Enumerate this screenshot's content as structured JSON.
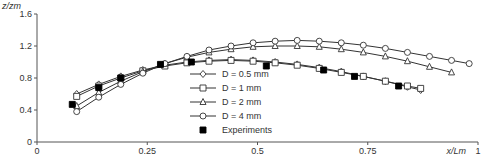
{
  "chart_data": {
    "type": "line",
    "x_label": "x/Lm",
    "y_label": "z/zm",
    "xlim": [
      0,
      1
    ],
    "xticks": [
      0,
      0.25,
      0.5,
      0.75,
      1
    ],
    "ylim": [
      0,
      1.6
    ],
    "yticks": [
      0,
      0.4,
      0.8,
      1.2,
      1.6
    ],
    "grid": false,
    "legend": "center",
    "series": [
      {
        "name": "D = 0.5 mm",
        "type": "line",
        "marker": "diamond",
        "color": "#333333",
        "x": [
          0.09,
          0.14,
          0.19,
          0.24,
          0.29,
          0.34,
          0.39,
          0.44,
          0.49,
          0.54,
          0.59,
          0.64,
          0.69,
          0.74,
          0.79,
          0.84,
          0.87
        ],
        "values": [
          0.6,
          0.72,
          0.82,
          0.9,
          0.96,
          1.0,
          1.02,
          1.03,
          1.02,
          1.0,
          0.97,
          0.93,
          0.88,
          0.82,
          0.76,
          0.69,
          0.65
        ]
      },
      {
        "name": "D = 1 mm",
        "type": "line",
        "marker": "square",
        "color": "#333333",
        "x": [
          0.09,
          0.14,
          0.19,
          0.24,
          0.29,
          0.34,
          0.39,
          0.44,
          0.49,
          0.54,
          0.59,
          0.64,
          0.69,
          0.74,
          0.79,
          0.84,
          0.87
        ],
        "values": [
          0.57,
          0.7,
          0.8,
          0.89,
          0.95,
          0.99,
          1.01,
          1.02,
          1.01,
          0.99,
          0.96,
          0.92,
          0.87,
          0.82,
          0.76,
          0.7,
          0.67
        ]
      },
      {
        "name": "D = 2 mm",
        "type": "line",
        "marker": "triangle",
        "color": "#333333",
        "x": [
          0.09,
          0.14,
          0.19,
          0.24,
          0.29,
          0.34,
          0.39,
          0.44,
          0.49,
          0.54,
          0.59,
          0.64,
          0.69,
          0.74,
          0.79,
          0.84,
          0.89,
          0.94
        ],
        "values": [
          0.45,
          0.62,
          0.76,
          0.88,
          0.98,
          1.06,
          1.12,
          1.16,
          1.19,
          1.2,
          1.2,
          1.19,
          1.16,
          1.12,
          1.07,
          1.01,
          0.94,
          0.87
        ]
      },
      {
        "name": "D = 4 mm",
        "type": "line",
        "marker": "circle",
        "color": "#333333",
        "x": [
          0.09,
          0.14,
          0.19,
          0.24,
          0.29,
          0.34,
          0.39,
          0.44,
          0.49,
          0.54,
          0.59,
          0.64,
          0.69,
          0.74,
          0.79,
          0.84,
          0.89,
          0.94,
          0.98
        ],
        "values": [
          0.38,
          0.56,
          0.72,
          0.86,
          0.98,
          1.07,
          1.15,
          1.2,
          1.24,
          1.26,
          1.27,
          1.26,
          1.24,
          1.21,
          1.17,
          1.12,
          1.07,
          1.02,
          0.98
        ]
      },
      {
        "name": "Experiments",
        "type": "scatter",
        "marker": "filled-square",
        "color": "#000000",
        "x": [
          0.08,
          0.14,
          0.19,
          0.28,
          0.35,
          0.52,
          0.65,
          0.72,
          0.82
        ],
        "values": [
          0.47,
          0.68,
          0.8,
          0.97,
          1.0,
          0.95,
          0.9,
          0.82,
          0.7
        ]
      }
    ]
  }
}
